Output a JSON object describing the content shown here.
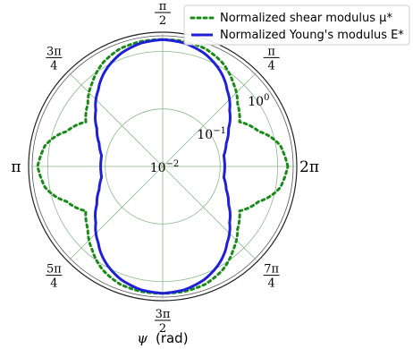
{
  "chart_data": {
    "type": "line",
    "projection": "polar",
    "xlabel_symbol": "ψ",
    "xlabel_unit": "(rad)",
    "radial_scale": "log",
    "rlim": [
      0.01,
      2
    ],
    "radial_ticks": [
      {
        "value": 0.01,
        "base": "10",
        "exp": "−2"
      },
      {
        "value": 0.1,
        "base": "10",
        "exp": "−1"
      },
      {
        "value": 1,
        "base": "10",
        "exp": "0"
      }
    ],
    "angular_ticks": [
      {
        "angle_deg": 0,
        "type": "text",
        "text": "2π"
      },
      {
        "angle_deg": 45,
        "type": "frac",
        "num": "π",
        "den": "4"
      },
      {
        "angle_deg": 90,
        "type": "frac",
        "num": "π",
        "den": "2"
      },
      {
        "angle_deg": 135,
        "type": "frac",
        "num": "3π",
        "den": "4"
      },
      {
        "angle_deg": 180,
        "type": "text",
        "text": "π"
      },
      {
        "angle_deg": 225,
        "type": "frac",
        "num": "5π",
        "den": "4"
      },
      {
        "angle_deg": 270,
        "type": "frac",
        "num": "3π",
        "den": "2"
      },
      {
        "angle_deg": 315,
        "type": "frac",
        "num": "7π",
        "den": "4"
      }
    ],
    "grid": true,
    "legend_position": "top-right",
    "series": [
      {
        "name": "Normalized shear modulus μ*",
        "color": "#1a8a1a",
        "style": "dotted",
        "angles_deg": [
          0,
          10,
          20,
          30,
          40,
          45,
          50,
          60,
          70,
          80,
          90
        ],
        "r": [
          1.5,
          1.2,
          0.6,
          0.35,
          0.5,
          0.65,
          0.8,
          1.2,
          1.5,
          1.6,
          1.6
        ]
      },
      {
        "name": "Normalized Young's modulus E*",
        "color": "#1f1fd6",
        "style": "solid",
        "angles_deg": [
          0,
          10,
          20,
          30,
          40,
          50,
          60,
          70,
          80,
          90
        ],
        "r": [
          0.12,
          0.12,
          0.15,
          0.21,
          0.33,
          0.55,
          0.9,
          1.25,
          1.5,
          1.6
        ]
      }
    ]
  }
}
